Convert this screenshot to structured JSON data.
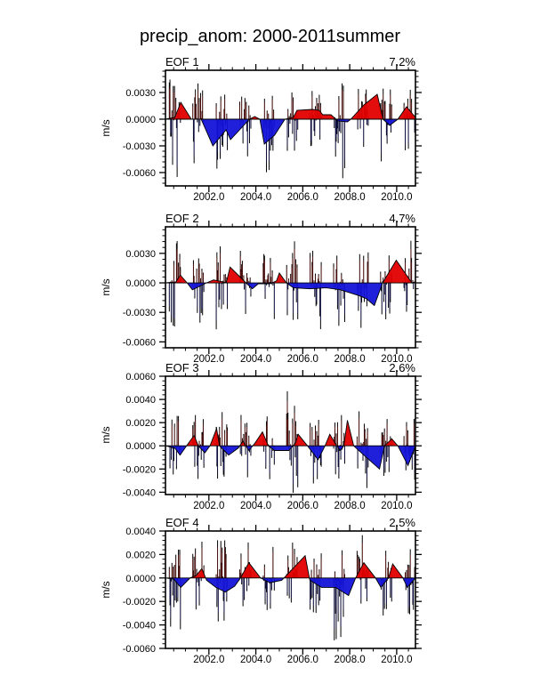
{
  "title": "precip_anom: 2000-2011summer",
  "colors": {
    "background": "#ffffff",
    "axis": "#000000",
    "fill_positive": "#e10000",
    "fill_negative": "#1414d8",
    "spike_line": "#000000",
    "spike_core_positive": "#701410",
    "spike_core_negative": "#14145f"
  },
  "x_axis": {
    "range": [
      2000.15,
      2010.8
    ],
    "tick_values": [
      2002.0,
      2004.0,
      2006.0,
      2008.0,
      2010.0
    ],
    "tick_labels": [
      "2002.0",
      "2004.0",
      "2006.0",
      "2008.0",
      "2010.0"
    ],
    "minor_step": 0.5
  },
  "chart_data": [
    {
      "type": "area",
      "label": "EOF 1",
      "variance_pct": "7.2%",
      "ylabel": "m/s",
      "ylim": [
        -0.0075,
        0.0055
      ],
      "ytick_values": [
        0.003,
        0.0,
        -0.003,
        -0.006
      ],
      "ytick_labels": [
        "0.0030",
        "0.0000",
        "-0.0030",
        "-0.0060"
      ],
      "ytick_minor_step": 0.0006,
      "smooth_series": [
        [
          2000.15,
          0
        ],
        [
          2000.55,
          0.0002
        ],
        [
          2000.8,
          0.0019
        ],
        [
          2001.25,
          0
        ],
        [
          2001.67,
          0
        ],
        [
          2002.17,
          -0.003
        ],
        [
          2002.73,
          -0.0012
        ],
        [
          2002.92,
          -0.0023
        ],
        [
          2003.73,
          0
        ],
        [
          2003.95,
          0.0003
        ],
        [
          2004.17,
          0
        ],
        [
          2004.36,
          -0.0028
        ],
        [
          2004.8,
          -0.0018
        ],
        [
          2005.24,
          0
        ],
        [
          2005.6,
          0.0002
        ],
        [
          2005.75,
          0.001
        ],
        [
          2006.4,
          0.0011
        ],
        [
          2006.7,
          0.001
        ],
        [
          2006.85,
          0.0005
        ],
        [
          2007.2,
          0.0005
        ],
        [
          2007.5,
          -0.0002
        ],
        [
          2007.9,
          -0.0003
        ],
        [
          2008.05,
          0
        ],
        [
          2008.6,
          0.0016
        ],
        [
          2009.17,
          0.0028
        ],
        [
          2009.42,
          0
        ],
        [
          2009.7,
          -0.0007
        ],
        [
          2010.05,
          0
        ],
        [
          2010.42,
          0.0014
        ],
        [
          2010.8,
          0.0002
        ]
      ],
      "spike_clusters": [
        {
          "year": 2000,
          "start": 2000.3,
          "end": 2000.8,
          "spike_max": 0.0045,
          "spike_min": -0.007
        },
        {
          "year": 2001,
          "start": 2001.3,
          "end": 2001.8,
          "spike_max": 0.0042,
          "spike_min": -0.0052
        },
        {
          "year": 2002,
          "start": 2002.3,
          "end": 2002.8,
          "spike_max": 0.0035,
          "spike_min": -0.0045
        },
        {
          "year": 2003,
          "start": 2003.3,
          "end": 2003.8,
          "spike_max": 0.0032,
          "spike_min": -0.0042
        },
        {
          "year": 2004,
          "start": 2004.3,
          "end": 2004.8,
          "spike_max": 0.0036,
          "spike_min": -0.0048
        },
        {
          "year": 2005,
          "start": 2005.3,
          "end": 2005.8,
          "spike_max": 0.003,
          "spike_min": -0.004
        },
        {
          "year": 2006,
          "start": 2006.3,
          "end": 2006.8,
          "spike_max": 0.0028,
          "spike_min": -0.0038
        },
        {
          "year": 2007,
          "start": 2007.3,
          "end": 2007.8,
          "spike_max": 0.0045,
          "spike_min": -0.0068
        },
        {
          "year": 2008,
          "start": 2008.3,
          "end": 2008.8,
          "spike_max": 0.003,
          "spike_min": -0.004
        },
        {
          "year": 2009,
          "start": 2009.3,
          "end": 2009.8,
          "spike_max": 0.0038,
          "spike_min": -0.0055
        },
        {
          "year": 2010,
          "start": 2010.3,
          "end": 2010.78,
          "spike_max": 0.003,
          "spike_min": -0.0042
        }
      ]
    },
    {
      "type": "area",
      "label": "EOF 2",
      "variance_pct": "4.7%",
      "ylabel": "m/s",
      "ylim": [
        -0.0066,
        0.0057
      ],
      "ytick_values": [
        0.003,
        0.0,
        -0.003,
        -0.006
      ],
      "ytick_labels": [
        "0.0030",
        "0.0000",
        "-0.0030",
        "-0.0060"
      ],
      "ytick_minor_step": 0.0006,
      "smooth_series": [
        [
          2000.15,
          0
        ],
        [
          2000.6,
          0.0001
        ],
        [
          2000.78,
          0.0008
        ],
        [
          2001.07,
          0
        ],
        [
          2001.3,
          -0.0007
        ],
        [
          2001.9,
          0
        ],
        [
          2002.2,
          0.0003
        ],
        [
          2002.6,
          0.0001
        ],
        [
          2002.74,
          0
        ],
        [
          2002.9,
          0.0016
        ],
        [
          2003.58,
          0
        ],
        [
          2003.85,
          -0.0006
        ],
        [
          2004.1,
          -0.0001
        ],
        [
          2004.6,
          -0.0001
        ],
        [
          2004.88,
          0.0002
        ],
        [
          2005.0,
          0.001
        ],
        [
          2005.3,
          0
        ],
        [
          2005.6,
          -0.0005
        ],
        [
          2006.3,
          -0.0006
        ],
        [
          2007.0,
          -0.0005
        ],
        [
          2007.6,
          -0.0007
        ],
        [
          2008.4,
          -0.0013
        ],
        [
          2008.7,
          -0.0016
        ],
        [
          2009.05,
          -0.0023
        ],
        [
          2009.4,
          0
        ],
        [
          2009.98,
          0.0023
        ],
        [
          2010.65,
          0
        ],
        [
          2010.8,
          0.0001
        ]
      ],
      "spike_clusters": [
        {
          "year": 2000,
          "start": 2000.3,
          "end": 2000.8,
          "spike_max": 0.004,
          "spike_min": -0.0045
        },
        {
          "year": 2001,
          "start": 2001.3,
          "end": 2001.8,
          "spike_max": 0.0028,
          "spike_min": -0.0042
        },
        {
          "year": 2002,
          "start": 2002.3,
          "end": 2002.8,
          "spike_max": 0.0038,
          "spike_min": -0.0052
        },
        {
          "year": 2003,
          "start": 2003.3,
          "end": 2003.8,
          "spike_max": 0.0032,
          "spike_min": -0.0035
        },
        {
          "year": 2004,
          "start": 2004.3,
          "end": 2004.8,
          "spike_max": 0.003,
          "spike_min": -0.0038
        },
        {
          "year": 2005,
          "start": 2005.3,
          "end": 2005.8,
          "spike_max": 0.0048,
          "spike_min": -0.0038
        },
        {
          "year": 2006,
          "start": 2006.3,
          "end": 2006.8,
          "spike_max": 0.0035,
          "spike_min": -0.0045
        },
        {
          "year": 2007,
          "start": 2007.3,
          "end": 2007.8,
          "spike_max": 0.0032,
          "spike_min": -0.004
        },
        {
          "year": 2008,
          "start": 2008.3,
          "end": 2008.8,
          "spike_max": 0.004,
          "spike_min": -0.0042
        },
        {
          "year": 2009,
          "start": 2009.3,
          "end": 2009.8,
          "spike_max": 0.0025,
          "spike_min": -0.004
        },
        {
          "year": 2010,
          "start": 2010.3,
          "end": 2010.78,
          "spike_max": 0.0042,
          "spike_min": -0.0035
        }
      ]
    },
    {
      "type": "area",
      "label": "EOF 3",
      "variance_pct": "2.6%",
      "ylabel": "m/s",
      "ylim": [
        -0.0042,
        0.006
      ],
      "ytick_values": [
        0.006,
        0.004,
        0.002,
        0.0,
        -0.002,
        -0.004
      ],
      "ytick_labels": [
        "0.0060",
        "0.0040",
        "0.0020",
        "0.0000",
        "-0.0020",
        "-0.0040"
      ],
      "ytick_minor_step": 0.0004,
      "smooth_series": [
        [
          2000.15,
          0
        ],
        [
          2000.55,
          -0.0002
        ],
        [
          2000.77,
          -0.0008
        ],
        [
          2001.05,
          0
        ],
        [
          2001.37,
          0.0009
        ],
        [
          2001.55,
          0
        ],
        [
          2001.83,
          -0.0006
        ],
        [
          2002.05,
          0
        ],
        [
          2002.33,
          0.0015
        ],
        [
          2002.45,
          0
        ],
        [
          2002.84,
          -0.0008
        ],
        [
          2003.25,
          -0.0002
        ],
        [
          2003.45,
          0.0004
        ],
        [
          2003.7,
          -0.0004
        ],
        [
          2003.95,
          0.0002
        ],
        [
          2004.28,
          0.0012
        ],
        [
          2004.53,
          0
        ],
        [
          2004.8,
          -0.0004
        ],
        [
          2005.4,
          -0.0004
        ],
        [
          2005.68,
          0.0002
        ],
        [
          2005.8,
          0.001
        ],
        [
          2006.2,
          0
        ],
        [
          2006.65,
          -0.0012
        ],
        [
          2006.95,
          0
        ],
        [
          2007.15,
          0.001
        ],
        [
          2007.45,
          0
        ],
        [
          2007.6,
          -0.0004
        ],
        [
          2007.75,
          0
        ],
        [
          2007.9,
          0.0022
        ],
        [
          2008.17,
          0
        ],
        [
          2008.6,
          -0.0008
        ],
        [
          2009.27,
          -0.002
        ],
        [
          2009.48,
          0
        ],
        [
          2009.79,
          0.0006
        ],
        [
          2010.05,
          0
        ],
        [
          2010.48,
          -0.0017
        ],
        [
          2010.8,
          0
        ]
      ],
      "spike_clusters": [
        {
          "year": 2000,
          "start": 2000.3,
          "end": 2000.8,
          "spike_max": 0.0028,
          "spike_min": -0.0024
        },
        {
          "year": 2001,
          "start": 2001.3,
          "end": 2001.8,
          "spike_max": 0.0026,
          "spike_min": -0.003
        },
        {
          "year": 2002,
          "start": 2002.3,
          "end": 2002.8,
          "spike_max": 0.0032,
          "spike_min": -0.0035
        },
        {
          "year": 2003,
          "start": 2003.3,
          "end": 2003.8,
          "spike_max": 0.0028,
          "spike_min": -0.0028
        },
        {
          "year": 2004,
          "start": 2004.3,
          "end": 2004.8,
          "spike_max": 0.0026,
          "spike_min": -0.003
        },
        {
          "year": 2005,
          "start": 2005.3,
          "end": 2005.8,
          "spike_max": 0.0052,
          "spike_min": -0.004
        },
        {
          "year": 2006,
          "start": 2006.3,
          "end": 2006.8,
          "spike_max": 0.003,
          "spike_min": -0.0032
        },
        {
          "year": 2007,
          "start": 2007.3,
          "end": 2007.8,
          "spike_max": 0.0028,
          "spike_min": -0.003
        },
        {
          "year": 2008,
          "start": 2008.3,
          "end": 2008.8,
          "spike_max": 0.0032,
          "spike_min": -0.003
        },
        {
          "year": 2009,
          "start": 2009.3,
          "end": 2009.8,
          "spike_max": 0.0025,
          "spike_min": -0.0025
        },
        {
          "year": 2010,
          "start": 2010.3,
          "end": 2010.78,
          "spike_max": 0.0028,
          "spike_min": -0.0028
        }
      ]
    },
    {
      "type": "area",
      "label": "EOF 4",
      "variance_pct": "2.5%",
      "ylabel": "m/s",
      "ylim": [
        -0.006,
        0.004
      ],
      "ytick_values": [
        0.004,
        0.002,
        0.0,
        -0.002,
        -0.004,
        -0.006
      ],
      "ytick_labels": [
        "0.0040",
        "0.0020",
        "0.0000",
        "-0.0020",
        "-0.0040",
        "-0.0060"
      ],
      "ytick_minor_step": 0.0004,
      "smooth_series": [
        [
          2000.15,
          0
        ],
        [
          2000.5,
          -0.0001
        ],
        [
          2000.8,
          -0.0008
        ],
        [
          2001.2,
          0
        ],
        [
          2001.45,
          0.0002
        ],
        [
          2001.7,
          0.0008
        ],
        [
          2001.9,
          -0.0002
        ],
        [
          2002.3,
          -0.0008
        ],
        [
          2002.7,
          -0.0012
        ],
        [
          2003.1,
          -0.0007
        ],
        [
          2003.35,
          0
        ],
        [
          2003.7,
          0.0013
        ],
        [
          2004.2,
          0
        ],
        [
          2004.6,
          -0.0004
        ],
        [
          2005.1,
          -0.0002
        ],
        [
          2005.2,
          0
        ],
        [
          2006.1,
          0.0019
        ],
        [
          2006.3,
          -0.0002
        ],
        [
          2006.8,
          -0.0008
        ],
        [
          2007.4,
          -0.0008
        ],
        [
          2007.95,
          -0.0015
        ],
        [
          2008.25,
          0
        ],
        [
          2008.6,
          0.0013
        ],
        [
          2009.1,
          0
        ],
        [
          2009.33,
          -0.0008
        ],
        [
          2009.65,
          0
        ],
        [
          2009.83,
          0.0012
        ],
        [
          2010.27,
          0
        ],
        [
          2010.45,
          -0.0008
        ],
        [
          2010.8,
          0
        ]
      ],
      "spike_clusters": [
        {
          "year": 2000,
          "start": 2000.3,
          "end": 2000.8,
          "spike_max": 0.0028,
          "spike_min": -0.0042
        },
        {
          "year": 2001,
          "start": 2001.3,
          "end": 2001.8,
          "spike_max": 0.0026,
          "spike_min": -0.0028
        },
        {
          "year": 2002,
          "start": 2002.3,
          "end": 2002.8,
          "spike_max": 0.0042,
          "spike_min": -0.0035
        },
        {
          "year": 2003,
          "start": 2003.3,
          "end": 2003.8,
          "spike_max": 0.0026,
          "spike_min": -0.0028
        },
        {
          "year": 2004,
          "start": 2004.3,
          "end": 2004.8,
          "spike_max": 0.003,
          "spike_min": -0.0026
        },
        {
          "year": 2005,
          "start": 2005.3,
          "end": 2005.8,
          "spike_max": 0.0028,
          "spike_min": -0.0026
        },
        {
          "year": 2006,
          "start": 2006.3,
          "end": 2006.8,
          "spike_max": 0.0026,
          "spike_min": -0.0028
        },
        {
          "year": 2007,
          "start": 2007.3,
          "end": 2007.8,
          "spike_max": 0.003,
          "spike_min": -0.005
        },
        {
          "year": 2008,
          "start": 2008.3,
          "end": 2008.8,
          "spike_max": 0.003,
          "spike_min": -0.0026
        },
        {
          "year": 2009,
          "start": 2009.3,
          "end": 2009.8,
          "spike_max": 0.0028,
          "spike_min": -0.003
        },
        {
          "year": 2010,
          "start": 2010.3,
          "end": 2010.78,
          "spike_max": 0.0028,
          "spike_min": -0.003
        }
      ]
    }
  ]
}
